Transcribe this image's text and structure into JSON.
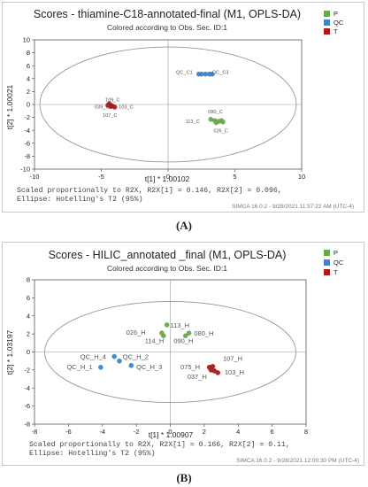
{
  "charts": [
    {
      "panel_label": "(A)",
      "title": "Scores - thiamine-C18-annotated-final (M1, OPLS-DA)",
      "subtitle": "Colored according to Obs. Sec. ID:1",
      "xlabel": "t[1] * 1.00102",
      "ylabel": "t[2] * 1.00021",
      "footer_line1": "Scaled proportionally to R2X, R2X[1] = 0.146, R2X[2] = 0.096,",
      "footer_line2": "Ellipse: Hotelling's T2 (95%)",
      "simca": "SIMCA 16.0.2 - 9/28/2021 11:57:22 AM (UTC-4)"
    },
    {
      "panel_label": "(B)",
      "title": "Scores - HILIC_annotated _final (M1, OPLS-DA)",
      "subtitle": "Colored according to Obs. Sec. ID:1",
      "xlabel": "t[1] * 1.00907",
      "ylabel": "t[2] * 1.03197",
      "footer_line1": "Scaled proportionally to R2X, R2X[1] = 0.166, R2X[2] = 0.11,",
      "footer_line2": "Ellipse: Hotelling's T2 (95%)",
      "simca": "SIMCA 16.0.2 - 9/28/2021 12:00:30 PM (UTC-4)"
    }
  ],
  "chart_data": [
    {
      "type": "scatter",
      "xlim": [
        -10,
        10
      ],
      "ylim": [
        -10,
        10
      ],
      "xticks": [
        -10,
        -5,
        0,
        5,
        10
      ],
      "yticks": [
        -10,
        -8,
        -6,
        -4,
        -2,
        0,
        2,
        4,
        6,
        8,
        10
      ],
      "grid": false,
      "ellipse": {
        "cx": 0,
        "cy": 0,
        "rx": 9.6,
        "ry": 8.9
      },
      "legend_position": "top-right",
      "legend": [
        {
          "label": "P",
          "color": "#6aa84f"
        },
        {
          "label": "QC",
          "color": "#3d85c6"
        },
        {
          "label": "T",
          "color": "#a61c1c"
        }
      ],
      "series": [
        {
          "name": "P",
          "color": "#6aa84f",
          "points": [
            {
              "x": 3.2,
              "y": -2.3
            },
            {
              "x": 3.5,
              "y": -2.5
            },
            {
              "x": 3.8,
              "y": -2.6
            },
            {
              "x": 4.1,
              "y": -2.7
            },
            {
              "x": 3.6,
              "y": -2.8
            },
            {
              "x": 4.0,
              "y": -2.5
            }
          ]
        },
        {
          "name": "QC",
          "color": "#3d85c6",
          "points": [
            {
              "x": 2.3,
              "y": 4.7
            },
            {
              "x": 2.5,
              "y": 4.7
            },
            {
              "x": 2.8,
              "y": 4.7
            },
            {
              "x": 3.1,
              "y": 4.7
            },
            {
              "x": 3.3,
              "y": 4.7
            }
          ]
        },
        {
          "name": "T",
          "color": "#a61c1c",
          "points": [
            {
              "x": -4.5,
              "y": -0.1
            },
            {
              "x": -4.3,
              "y": -0.3
            },
            {
              "x": -4.2,
              "y": -0.2
            },
            {
              "x": -4.0,
              "y": -0.4
            },
            {
              "x": -4.4,
              "y": 0.1
            }
          ]
        }
      ],
      "labels": [
        {
          "text": "QC_C1",
          "x": 0.6,
          "y": 4.7
        },
        {
          "text": "QC_C3",
          "x": 3.3,
          "y": 4.7
        },
        {
          "text": "080_C",
          "x": 3.0,
          "y": -1.4
        },
        {
          "text": "113_C",
          "x": 1.3,
          "y": -2.9
        },
        {
          "text": "026_C",
          "x": 3.4,
          "y": -4.3
        },
        {
          "text": "109_C",
          "x": -4.7,
          "y": 0.5
        },
        {
          "text": "039_C",
          "x": -5.5,
          "y": -0.6
        },
        {
          "text": "103_C",
          "x": -3.7,
          "y": -0.6
        },
        {
          "text": "107_C",
          "x": -4.9,
          "y": -1.9
        }
      ]
    },
    {
      "type": "scatter",
      "xlim": [
        -8,
        8
      ],
      "ylim": [
        -8,
        8
      ],
      "xticks": [
        -8,
        -6,
        -4,
        -2,
        0,
        2,
        4,
        6,
        8
      ],
      "yticks": [
        -8,
        -6,
        -4,
        -2,
        0,
        2,
        4,
        6,
        8
      ],
      "grid": false,
      "ellipse": {
        "cx": 0,
        "cy": 0,
        "rx": 7.4,
        "ry": 5.6
      },
      "legend_position": "top-right",
      "legend": [
        {
          "label": "P",
          "color": "#6aa84f"
        },
        {
          "label": "QC",
          "color": "#3d85c6"
        },
        {
          "label": "T",
          "color": "#a61c1c"
        }
      ],
      "series": [
        {
          "name": "P",
          "color": "#6aa84f",
          "points": [
            {
              "x": -0.2,
              "y": 3.0
            },
            {
              "x": -0.5,
              "y": 2.1
            },
            {
              "x": -0.4,
              "y": 1.8
            },
            {
              "x": 1.1,
              "y": 2.1
            },
            {
              "x": 0.9,
              "y": 1.8
            }
          ]
        },
        {
          "name": "QC",
          "color": "#3d85c6",
          "points": [
            {
              "x": -3.3,
              "y": -0.5
            },
            {
              "x": -3.0,
              "y": -1.0
            },
            {
              "x": -4.1,
              "y": -1.7
            },
            {
              "x": -2.3,
              "y": -1.5
            }
          ]
        },
        {
          "name": "T",
          "color": "#a61c1c",
          "points": [
            {
              "x": 2.3,
              "y": -1.7
            },
            {
              "x": 2.5,
              "y": -1.6
            },
            {
              "x": 2.6,
              "y": -2.1
            },
            {
              "x": 2.8,
              "y": -2.3
            },
            {
              "x": 2.4,
              "y": -2.0
            }
          ]
        }
      ],
      "labels": [
        {
          "text": "113_H",
          "x": 0.0,
          "y": 2.7
        },
        {
          "text": "026_H",
          "x": -2.6,
          "y": 1.9
        },
        {
          "text": "080_H",
          "x": 1.4,
          "y": 1.8
        },
        {
          "text": "114_H",
          "x": -1.5,
          "y": 1.0
        },
        {
          "text": "090_H",
          "x": 0.2,
          "y": 1.0
        },
        {
          "text": "QC_H_4",
          "x": -5.3,
          "y": -0.8
        },
        {
          "text": "QC_H_2",
          "x": -2.8,
          "y": -0.8
        },
        {
          "text": "QC_H_1",
          "x": -6.1,
          "y": -1.9
        },
        {
          "text": "QC_H_3",
          "x": -2.0,
          "y": -1.9
        },
        {
          "text": "107_H",
          "x": 3.1,
          "y": -1.0
        },
        {
          "text": "075_H",
          "x": 0.6,
          "y": -1.9
        },
        {
          "text": "103_H",
          "x": 3.2,
          "y": -2.5
        },
        {
          "text": "037_H",
          "x": 1.0,
          "y": -3.0
        }
      ]
    }
  ]
}
